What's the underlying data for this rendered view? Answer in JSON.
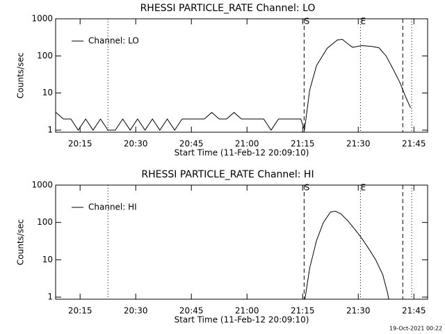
{
  "chart_data": [
    {
      "type": "line",
      "title": "RHESSI PARTICLE_RATE Channel: LO",
      "xlabel": "Start Time (11-Feb-12 20:09:10)",
      "ylabel": "Counts/sec",
      "x": [
        1208.5,
        1210.5,
        1212.5,
        1214.5,
        1216.5,
        1218.5,
        1220.5,
        1222.5,
        1224.5,
        1226.5,
        1228.5,
        1230.5,
        1232.5,
        1234.5,
        1236.5,
        1238.5,
        1240.5,
        1242.5,
        1244.5,
        1246.5,
        1248.5,
        1250.5,
        1252.5,
        1254.5,
        1256.5,
        1258.5,
        1260.5,
        1262.5,
        1264.5,
        1266.5,
        1268.5,
        1270.5,
        1272.5,
        1274.5,
        1275.5,
        1276.9,
        1278.75,
        1281.6,
        1284.4,
        1285.7,
        1287.2,
        1288.5,
        1290.9,
        1293.75,
        1295.6,
        1297.5,
        1299.4,
        1301.25,
        1302.75,
        1304.1
      ],
      "series": [
        {
          "name": "Channel: LO",
          "color": "#000000",
          "values": [
            3,
            2,
            2,
            1,
            2,
            1,
            2,
            1,
            1,
            2,
            1,
            2,
            1,
            2,
            1,
            2,
            1,
            2,
            2,
            2,
            2,
            3,
            2,
            2,
            3,
            2,
            2,
            2,
            2,
            1,
            2,
            2,
            2,
            2,
            1,
            12,
            55,
            160,
            270,
            280,
            210,
            170,
            190,
            180,
            165,
            100,
            44,
            19,
            8,
            4
          ]
        }
      ],
      "xlim": [
        1208.4,
        1308.7
      ],
      "xticks": [
        {
          "value": 1215,
          "label": "20:15"
        },
        {
          "value": 1230,
          "label": "20:30"
        },
        {
          "value": 1245,
          "label": "20:45"
        },
        {
          "value": 1260,
          "label": "21:00"
        },
        {
          "value": 1275,
          "label": "21:15"
        },
        {
          "value": 1290,
          "label": "21:30"
        },
        {
          "value": 1305,
          "label": "21:45"
        }
      ],
      "ylim": [
        0.88,
        1000
      ],
      "yticks": [
        1,
        10,
        100,
        1000
      ],
      "yscale": "log",
      "legend": "upper left",
      "markers": [
        {
          "x": 1222.5,
          "style": "dotted"
        },
        {
          "x": 1275.4,
          "style": "dashed",
          "label": "S"
        },
        {
          "x": 1290.6,
          "style": "dotted",
          "label": "E"
        },
        {
          "x": 1302.0,
          "style": "dashed"
        },
        {
          "x": 1304.4,
          "style": "dotted"
        }
      ]
    },
    {
      "type": "line",
      "title": "RHESSI PARTICLE_RATE Channel: HI",
      "xlabel": "Start Time (11-Feb-12 20:09:10)",
      "ylabel": "Counts/sec",
      "x": [
        1275.6,
        1276.9,
        1278.75,
        1280.6,
        1282.5,
        1283.8,
        1285.3,
        1287.2,
        1289.1,
        1290.9,
        1292.8,
        1294.7,
        1296.6,
        1297.9,
        1298.25
      ],
      "series": [
        {
          "name": "Channel: HI",
          "color": "#000000",
          "values": [
            0.85,
            6,
            33,
            100,
            190,
            200,
            170,
            110,
            65,
            38,
            20,
            10,
            4,
            1.3,
            0.85
          ]
        }
      ],
      "xlim": [
        1208.4,
        1308.7
      ],
      "xticks": [
        {
          "value": 1215,
          "label": "20:15"
        },
        {
          "value": 1230,
          "label": "20:30"
        },
        {
          "value": 1245,
          "label": "20:45"
        },
        {
          "value": 1260,
          "label": "21:00"
        },
        {
          "value": 1275,
          "label": "21:15"
        },
        {
          "value": 1290,
          "label": "21:30"
        },
        {
          "value": 1305,
          "label": "21:45"
        }
      ],
      "ylim": [
        0.88,
        1000
      ],
      "yticks": [
        1,
        10,
        100,
        1000
      ],
      "yscale": "log",
      "legend": "upper left",
      "markers": [
        {
          "x": 1222.5,
          "style": "dotted"
        },
        {
          "x": 1275.4,
          "style": "dashed",
          "label": "S"
        },
        {
          "x": 1290.6,
          "style": "dotted",
          "label": "E"
        },
        {
          "x": 1302.0,
          "style": "dashed"
        },
        {
          "x": 1304.4,
          "style": "dotted"
        }
      ]
    }
  ],
  "footer": "19-Oct-2021 00:22"
}
